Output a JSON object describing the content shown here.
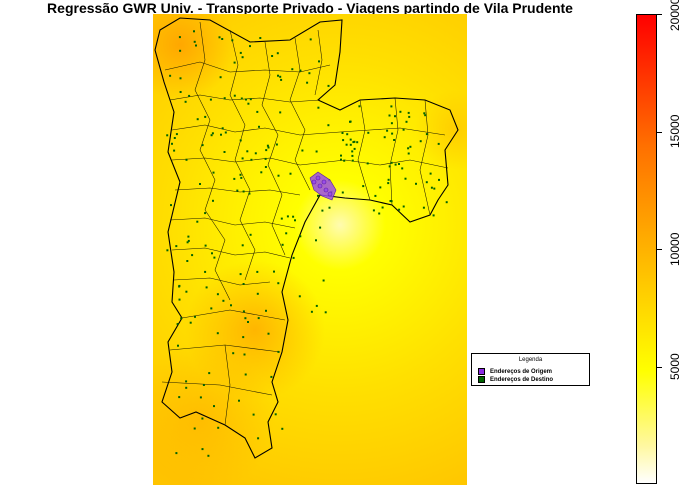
{
  "title": "Regressão GWR Univ. - Transporte Privado - Viagens partindo de Vila Prudente",
  "legend": {
    "title": "Legenda",
    "items": [
      {
        "label": "Endereços de Origem",
        "color": "#8a2be2"
      },
      {
        "label": "Endereços de Destino",
        "color": "#006400"
      }
    ]
  },
  "colorbar": {
    "min": 0,
    "max": 20000,
    "ticks": [
      {
        "label": "5000",
        "value": 5000
      },
      {
        "label": "10000",
        "value": 10000
      },
      {
        "label": "15000",
        "value": 15000
      },
      {
        "label": "20000",
        "value": 20000
      }
    ],
    "colors": [
      "#ffffff",
      "#ffff00",
      "#ffa500",
      "#ff0000"
    ]
  },
  "colors": {
    "origin": "#8a2be2",
    "destination": "#006400",
    "boundary": "#000000"
  }
}
